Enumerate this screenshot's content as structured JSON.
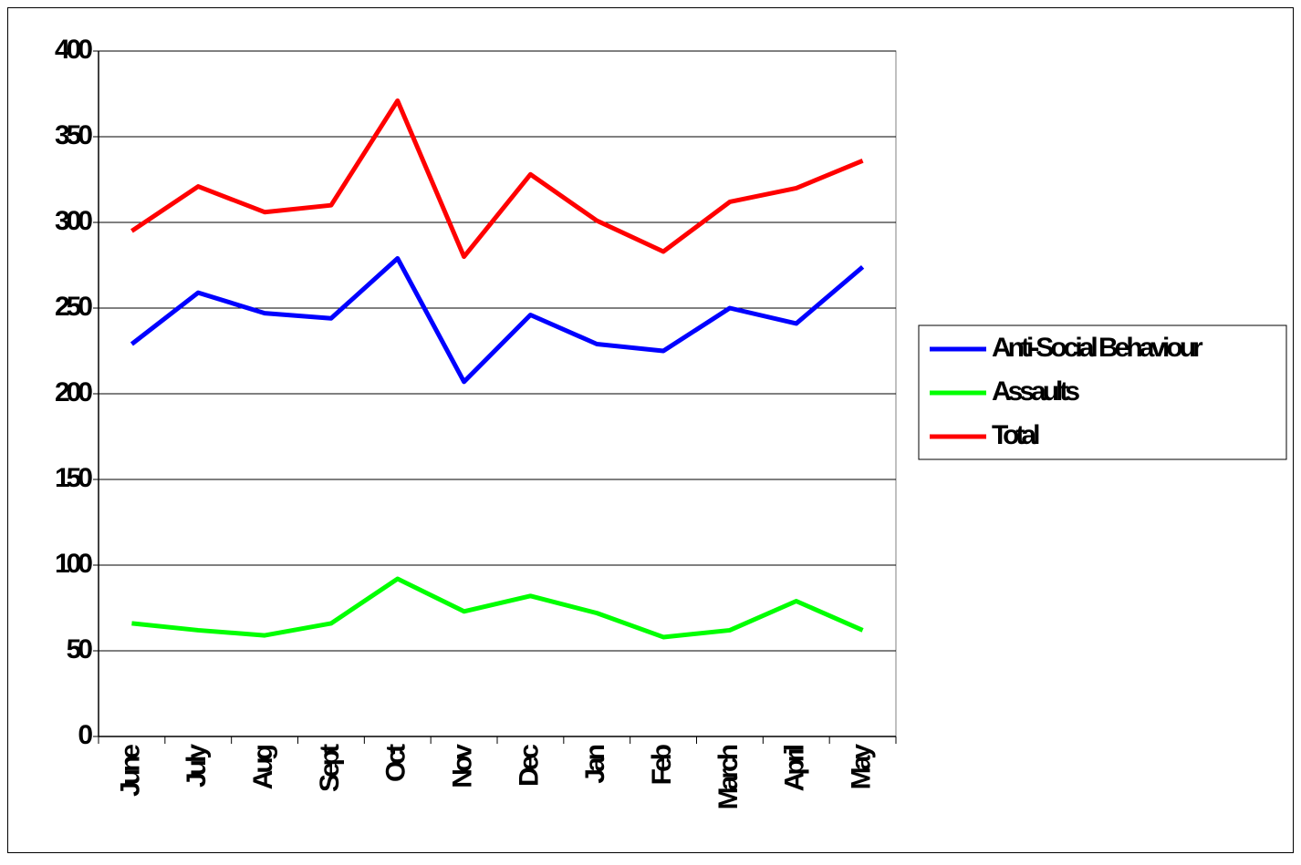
{
  "chart_data": {
    "type": "line",
    "categories": [
      "June",
      "July",
      "Aug",
      "Sept",
      "Oct",
      "Nov",
      "Dec",
      "Jan",
      "Feb",
      "March",
      "April",
      "May"
    ],
    "series": [
      {
        "name": "Anti-Social Behaviour",
        "color": "#0000ff",
        "values": [
          229,
          259,
          247,
          244,
          279,
          207,
          246,
          229,
          225,
          250,
          241,
          274
        ]
      },
      {
        "name": "Assaults",
        "color": "#00ff00",
        "values": [
          66,
          62,
          59,
          66,
          92,
          73,
          82,
          72,
          58,
          62,
          79,
          62
        ]
      },
      {
        "name": "Total",
        "color": "#ff0000",
        "values": [
          295,
          321,
          306,
          310,
          371,
          280,
          328,
          301,
          283,
          312,
          320,
          336
        ]
      }
    ],
    "ylim": [
      0,
      400
    ],
    "yticks": [
      0,
      50,
      100,
      150,
      200,
      250,
      300,
      350,
      400
    ],
    "grid": true,
    "legend": "right"
  }
}
